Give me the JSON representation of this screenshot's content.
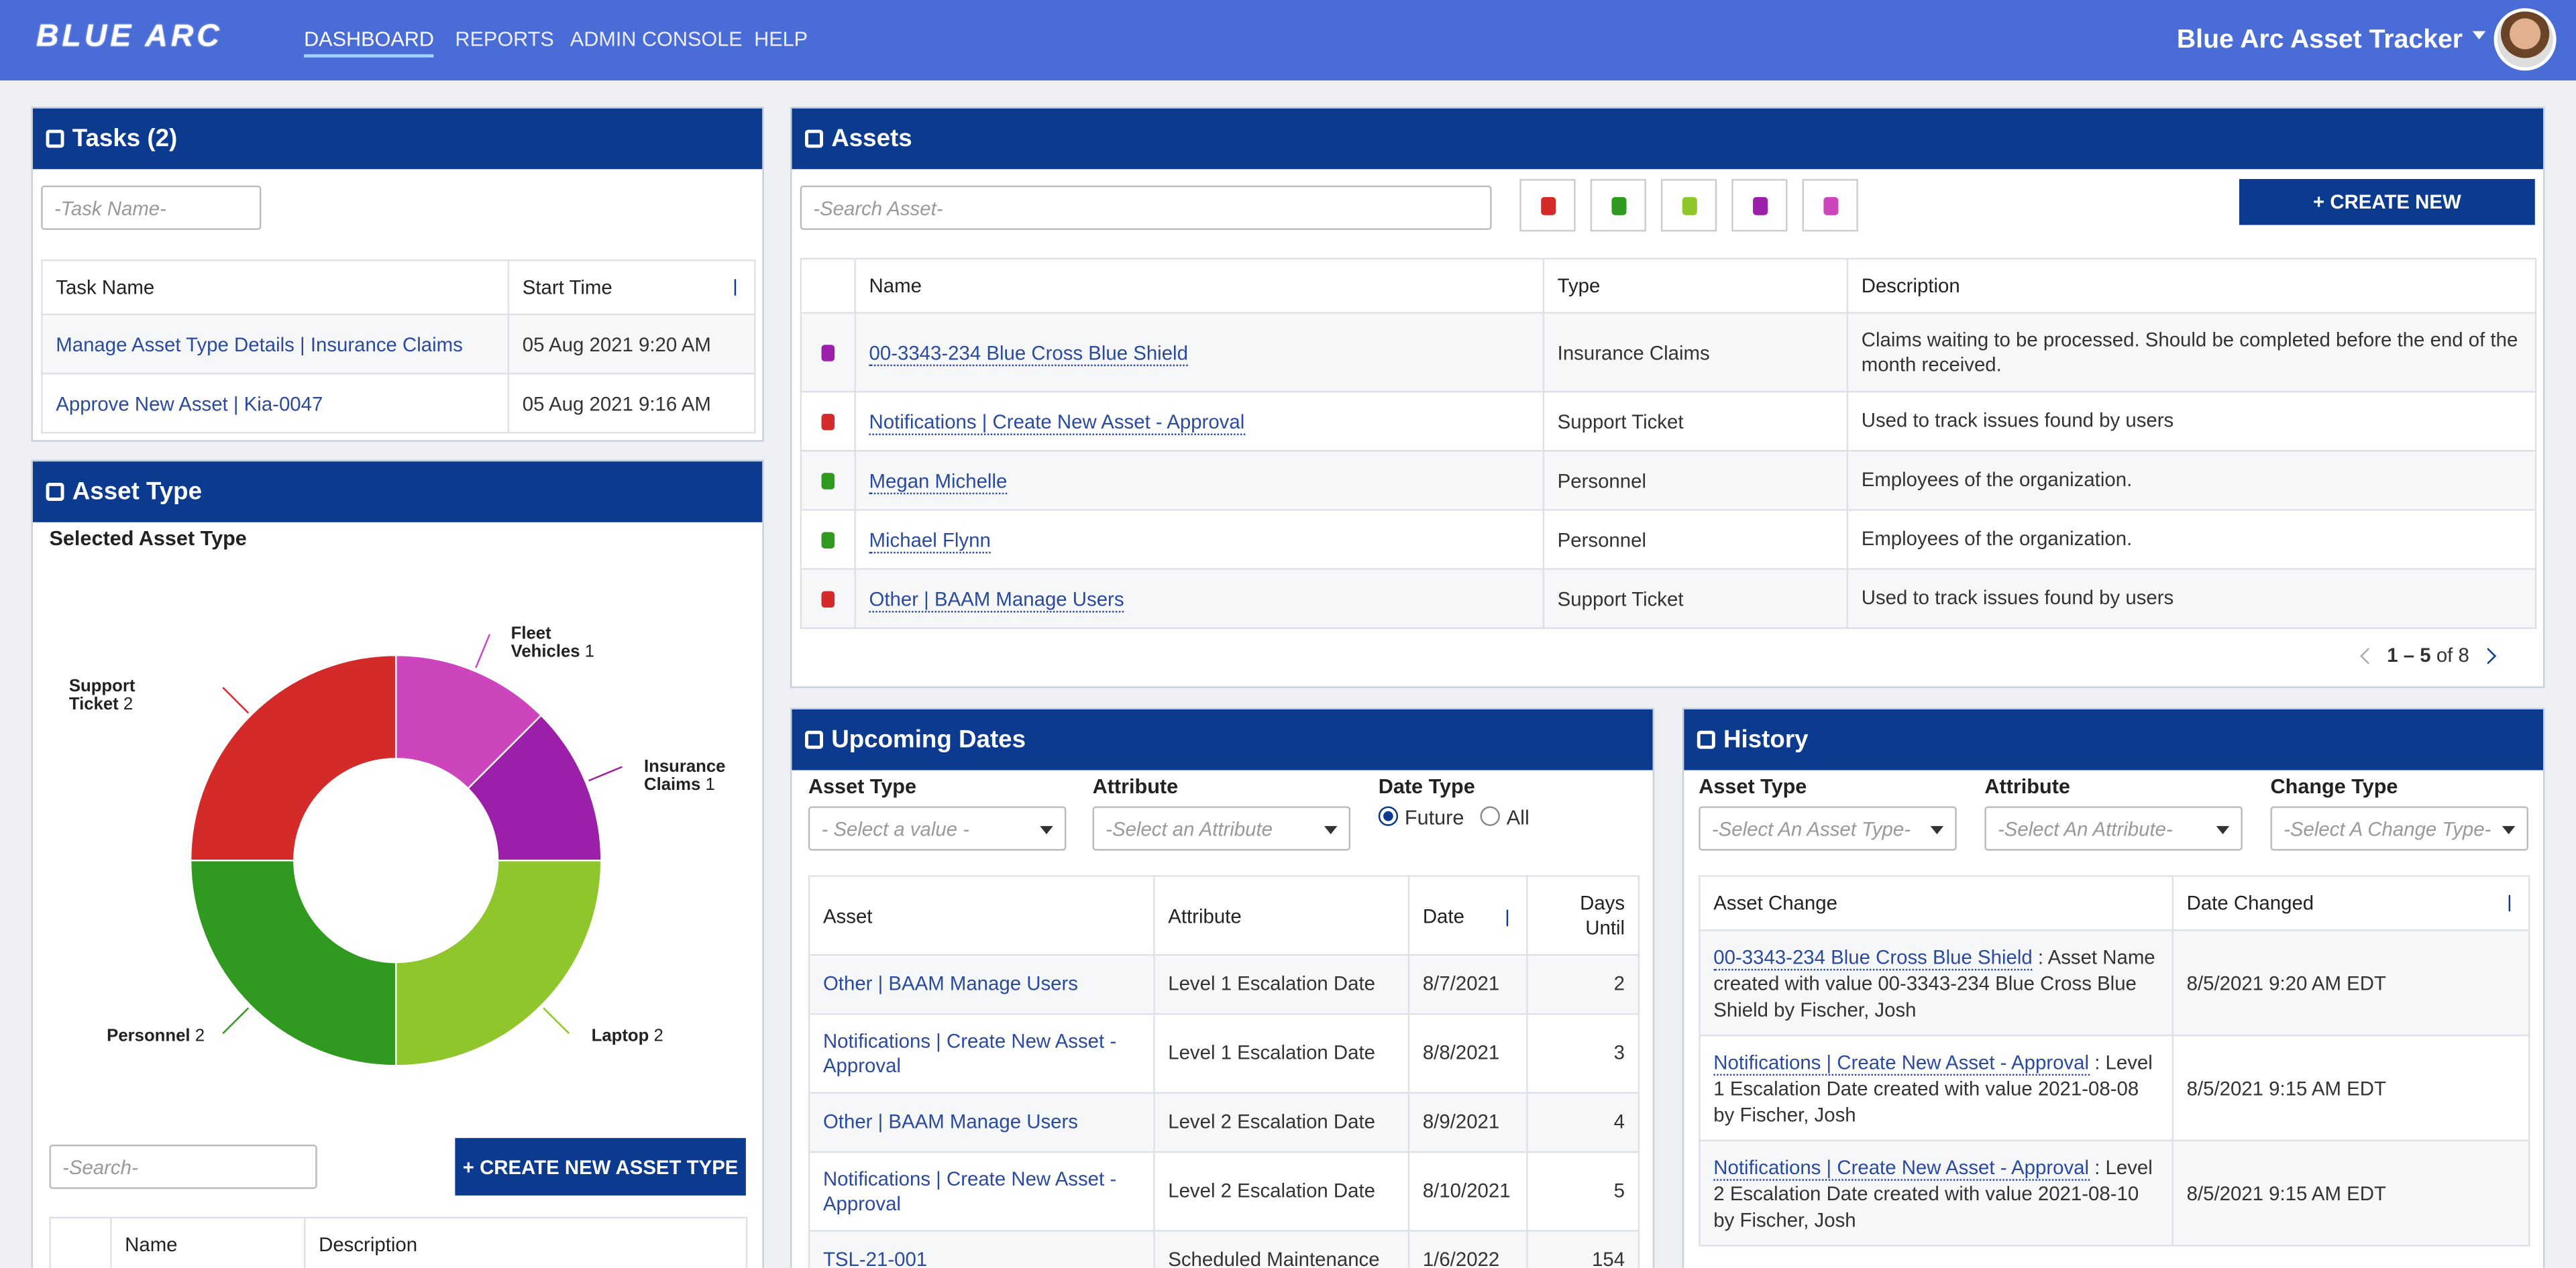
{
  "nav": {
    "brand": "BLUE ARC",
    "links": [
      "DASHBOARD",
      "REPORTS",
      "ADMIN CONSOLE",
      "HELP"
    ],
    "app_name": "Blue Arc Asset Tracker"
  },
  "tasks": {
    "title": "Tasks (2)",
    "search_placeholder": "-Task Name-",
    "columns": [
      "Task Name",
      "Start Time"
    ],
    "rows": [
      [
        "Manage Asset Type Details | Insurance Claims",
        "05 Aug 2021 9:20 AM"
      ],
      [
        "Approve New Asset | Kia-0047",
        "05 Aug 2021 9:16 AM"
      ]
    ]
  },
  "asset_type": {
    "title": "Asset Type",
    "subtitle": "Selected Asset Type",
    "chart_data": {
      "type": "pie",
      "categories": [
        "Fleet Vehicles",
        "Insurance Claims",
        "Laptop",
        "Personnel",
        "Support Ticket"
      ],
      "values": [
        1,
        1,
        2,
        2,
        2
      ],
      "colors": [
        "#cc45bd",
        "#9b1fa9",
        "#8fc62b",
        "#2f9a1f",
        "#d42a2a"
      ]
    },
    "search_placeholder": "-Search-",
    "create_button": "+ CREATE NEW ASSET TYPE",
    "columns": [
      "Name",
      "Description"
    ]
  },
  "assets": {
    "title": "Assets",
    "search_placeholder": "-Search Asset-",
    "create_button": "+ CREATE NEW",
    "columns": [
      "Name",
      "Type",
      "Description"
    ],
    "rows": [
      [
        "00-3343-234 Blue Cross Blue Shield",
        "Insurance Claims",
        "Claims waiting to be processed. Should be completed before the end of the month received."
      ],
      [
        "Notifications | Create New Asset - Approval",
        "Support Ticket",
        "Used to track issues found by users"
      ],
      [
        "Megan Michelle",
        "Personnel",
        "Employees of the organization."
      ],
      [
        "Michael Flynn",
        "Personnel",
        "Employees of the organization."
      ],
      [
        "Other | BAAM Manage Users",
        "Support Ticket",
        "Used to track issues found by users"
      ]
    ],
    "pagination": {
      "range": "1 – 5",
      "total": "of 8"
    }
  },
  "upcoming": {
    "title": "Upcoming Dates",
    "filters": [
      "Asset Type",
      "Attribute",
      "Date Type"
    ],
    "placeholders": [
      "- Select a value -",
      "-Select an Attribute"
    ],
    "radios": [
      "Future",
      "All"
    ],
    "columns": [
      "Asset",
      "Attribute",
      "Date",
      "Days Until"
    ],
    "rows": [
      [
        "Other | BAAM Manage Users",
        "Level 1 Escalation Date",
        "8/7/2021",
        2
      ],
      [
        "Notifications | Create New Asset - Approval",
        "Level 1 Escalation Date",
        "8/8/2021",
        3
      ],
      [
        "Other | BAAM Manage Users",
        "Level 2 Escalation Date",
        "8/9/2021",
        4
      ],
      [
        "Notifications | Create New Asset - Approval",
        "Level 2 Escalation Date",
        "8/10/2021",
        5
      ],
      [
        "TSL-21-001",
        "Scheduled Maintenance",
        "1/6/2022",
        154
      ]
    ]
  },
  "history": {
    "title": "History",
    "filters": [
      "Asset Type",
      "Attribute",
      "Change Type"
    ],
    "placeholders": [
      "-Select An Asset Type-",
      "-Select An Attribute-",
      "-Select A Change Type-"
    ],
    "columns": [
      "Asset Change",
      "Date Changed"
    ],
    "rows": [
      [
        {
          "link": "00-3343-234 Blue Cross Blue Shield",
          "text": " : Asset Name created with value 00-3343-234 Blue Cross Blue Shield by Fischer, Josh"
        },
        "8/5/2021 9:20 AM EDT"
      ],
      [
        {
          "link": "Notifications | Create New Asset - Approval",
          "text": " : Level 1 Escalation Date created with value 2021-08-08 by Fischer, Josh"
        },
        "8/5/2021 9:15 AM EDT"
      ],
      [
        {
          "link": "Notifications | Create New Asset - Approval",
          "text": " : Level 2 Escalation Date created with value 2021-08-10 by Fischer, Josh"
        },
        "8/5/2021 9:15 AM EDT"
      ]
    ]
  }
}
